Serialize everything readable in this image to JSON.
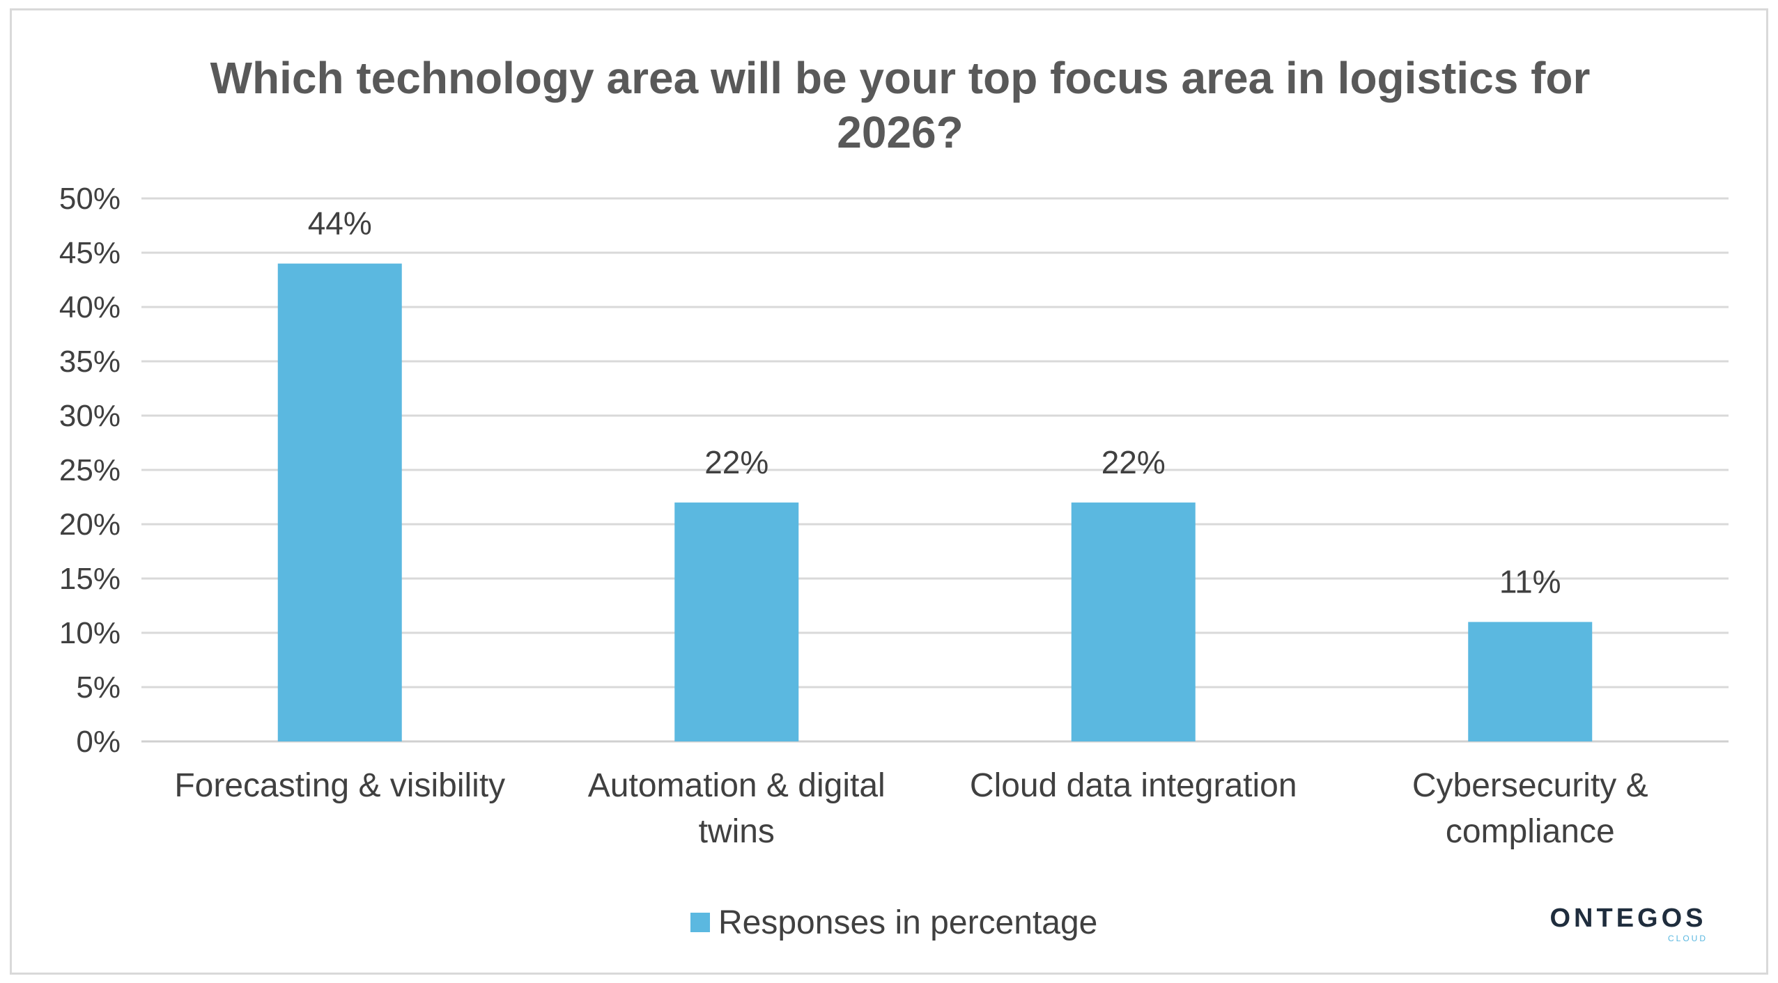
{
  "chart_data": {
    "type": "bar",
    "title": "Which technology area will be your top focus area in logistics for 2026?",
    "categories": [
      [
        "Forecasting & visibility"
      ],
      [
        "Automation & digital",
        "twins"
      ],
      [
        "Cloud data integration"
      ],
      [
        "Cybersecurity &",
        "compliance"
      ]
    ],
    "series": [
      {
        "name": "Responses in percentage",
        "values": [
          44,
          22,
          22,
          11
        ],
        "color": "#5bb8e0"
      }
    ],
    "data_labels": [
      "44%",
      "22%",
      "22%",
      "11%"
    ],
    "ylim": [
      0,
      50
    ],
    "yticks": [
      0,
      5,
      10,
      15,
      20,
      25,
      30,
      35,
      40,
      45,
      50
    ],
    "ytick_labels": [
      "0%",
      "5%",
      "10%",
      "15%",
      "20%",
      "25%",
      "30%",
      "35%",
      "40%",
      "45%",
      "50%"
    ],
    "grid": true,
    "legend_position": "bottom",
    "xlabel": "",
    "ylabel": ""
  },
  "brand": {
    "name": "ONTEGOS",
    "sub": "CLOUD"
  }
}
